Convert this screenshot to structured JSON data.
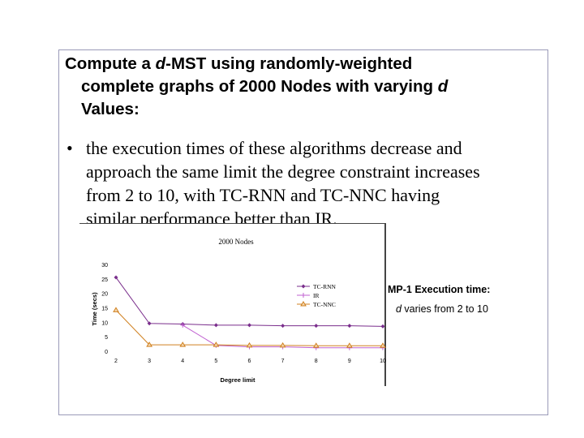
{
  "slide": {
    "heading_lines": [
      {
        "parts": [
          "Compute a ",
          "d",
          "-MST using randomly-weighted"
        ]
      },
      {
        "parts": [
          "complete graphs of 2000 Nodes with varying ",
          "d",
          ""
        ]
      },
      {
        "parts": [
          "Values:",
          "",
          ""
        ]
      }
    ],
    "bullet_symbol": "•",
    "bullet_lines": [
      "the execution times of these algorithms decrease and",
      "approach the same limit the degree constraint increases",
      "from 2 to 10, with TC-RNN and TC-NNC having",
      "similar performance better than IR."
    ],
    "caption_title": "MP-1 Execution time:",
    "caption_var": "d",
    "caption_rest": " varies from 2 to 10"
  },
  "chart_data": {
    "type": "line",
    "title": "2000 Nodes",
    "xlabel": "Degree limit",
    "ylabel": "Time (secs)",
    "x": [
      2,
      3,
      4,
      5,
      6,
      7,
      8,
      9,
      10
    ],
    "x_tick_labels": [
      "2",
      "3",
      "4",
      "5",
      "6",
      "7",
      "8",
      "9",
      "10"
    ],
    "ylim": [
      0,
      30
    ],
    "y_ticks": [
      0,
      5,
      10,
      15,
      20,
      25,
      30
    ],
    "grid": false,
    "legend_position": "right",
    "series": [
      {
        "name": "TC-RNN",
        "color": "#7a2e8c",
        "marker": "diamond",
        "values": [
          25.5,
          9.6,
          9.4,
          9.0,
          9.0,
          8.8,
          8.8,
          8.8,
          8.6
        ]
      },
      {
        "name": "IR",
        "color": "#c060d0",
        "marker": "plus",
        "values": [
          null,
          null,
          9.0,
          2.0,
          1.5,
          1.5,
          1.2,
          1.2,
          1.2
        ]
      },
      {
        "name": "TC-NNC",
        "color": "#d08020",
        "marker": "triangle",
        "values": [
          14.2,
          2.2,
          2.2,
          2.2,
          2.0,
          2.0,
          1.9,
          1.9,
          1.9
        ]
      }
    ]
  }
}
